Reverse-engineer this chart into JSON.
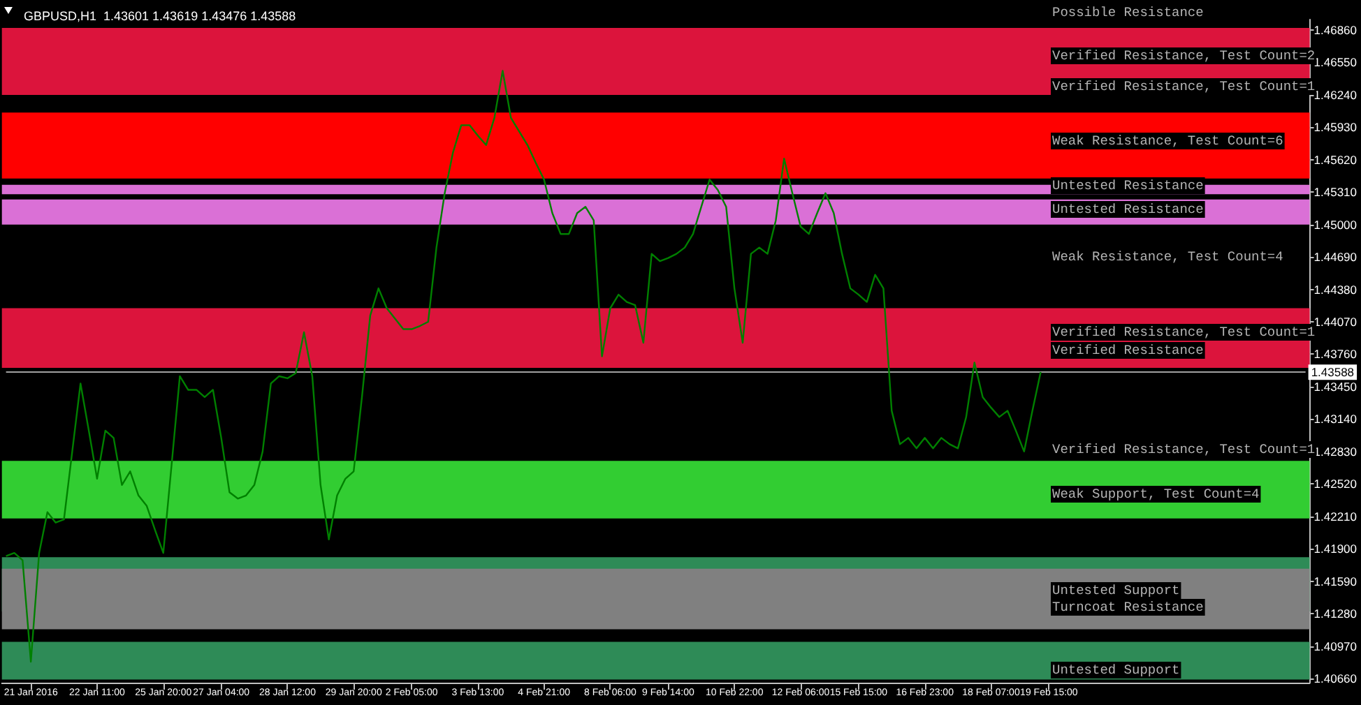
{
  "chart_data": {
    "type": "line",
    "title": "GBPUSD,H1  1.43601 1.43619 1.43476 1.43588",
    "categories": [
      null,
      null,
      null,
      "21 Jan 2016",
      null,
      null,
      null,
      null,
      null,
      null,
      null,
      "22 Jan 11:00",
      null,
      null,
      null,
      null,
      null,
      null,
      null,
      "25 Jan 20:00",
      null,
      null,
      null,
      null,
      null,
      null,
      "27 Jan 04:00",
      null,
      null,
      null,
      null,
      null,
      null,
      null,
      "28 Jan 12:00",
      null,
      null,
      null,
      null,
      null,
      null,
      null,
      "29 Jan 20:00",
      null,
      null,
      null,
      null,
      null,
      null,
      "2 Feb 05:00",
      null,
      null,
      null,
      null,
      null,
      null,
      null,
      "3 Feb 13:00",
      null,
      null,
      null,
      null,
      null,
      null,
      null,
      "4 Feb 21:00",
      null,
      null,
      null,
      null,
      null,
      null,
      null,
      "8 Feb 06:00",
      null,
      null,
      null,
      null,
      null,
      null,
      "9 Feb 14:00",
      null,
      null,
      null,
      null,
      null,
      null,
      null,
      "10 Feb 22:00",
      null,
      null,
      null,
      null,
      null,
      null,
      null,
      "12 Feb 06:00",
      null,
      null,
      null,
      null,
      null,
      null,
      "15 Feb 15:00",
      null,
      null,
      null,
      null,
      null,
      null,
      null,
      "16 Feb 23:00",
      null,
      null,
      null,
      null,
      null,
      null,
      null,
      "18 Feb 07:00",
      null,
      null,
      null,
      null,
      null,
      null,
      "19 Feb 15:00",
      null,
      null,
      null,
      null,
      null,
      null,
      null,
      null,
      null,
      null,
      null,
      null,
      null,
      null,
      null,
      null,
      null,
      null,
      null,
      null,
      null,
      null,
      null,
      null,
      null,
      null,
      null,
      null,
      null,
      null,
      null
    ],
    "values": [
      1.4183,
      1.4186,
      1.4179,
      1.4082,
      1.4186,
      1.4225,
      1.4215,
      1.4218,
      1.4283,
      1.4348,
      1.4303,
      1.4257,
      1.4303,
      1.4296,
      1.4251,
      1.4264,
      1.4241,
      1.4231,
      1.4208,
      1.4186,
      1.427,
      1.4355,
      1.4342,
      1.4342,
      1.4335,
      1.4342,
      1.4296,
      1.4244,
      1.4238,
      1.4241,
      1.4251,
      1.4283,
      1.4348,
      1.4355,
      1.4353,
      1.4358,
      1.4397,
      1.4355,
      1.4251,
      1.4199,
      1.4241,
      1.4257,
      1.4264,
      1.4335,
      1.4413,
      1.4439,
      1.442,
      1.441,
      1.44,
      1.44,
      1.4403,
      1.4407,
      1.4478,
      1.453,
      1.4569,
      1.4595,
      1.4595,
      1.4585,
      1.4576,
      1.4602,
      1.4647,
      1.4602,
      1.4589,
      1.4576,
      1.4559,
      1.4543,
      1.4511,
      1.4491,
      1.4491,
      1.4511,
      1.4517,
      1.4504,
      1.4374,
      1.442,
      1.4433,
      1.4426,
      1.4423,
      1.4387,
      1.4472,
      1.4465,
      1.4468,
      1.4472,
      1.4478,
      1.4491,
      1.4517,
      1.4543,
      1.4533,
      1.4517,
      1.4439,
      1.4387,
      1.4472,
      1.4478,
      1.4472,
      1.4504,
      1.4563,
      1.453,
      1.4498,
      1.4491,
      1.4511,
      1.453,
      1.4511,
      1.4472,
      1.4439,
      1.4433,
      1.4426,
      1.4452,
      1.4439,
      1.4322,
      1.429,
      1.4296,
      1.4286,
      1.4296,
      1.4286,
      1.4296,
      1.429,
      1.4286,
      1.4316,
      1.4368,
      1.4335,
      1.4325,
      1.4316,
      1.4322,
      1.4303,
      1.4283,
      1.4322,
      1.4359,
      null,
      null,
      null,
      null,
      null,
      null,
      null,
      null,
      null,
      null,
      null,
      null,
      null,
      null,
      null,
      null,
      null,
      null,
      null,
      null,
      null,
      null,
      null,
      null,
      null,
      null,
      null,
      null,
      null,
      null,
      null,
      null
    ],
    "color": "#008000",
    "marker": "none",
    "ylim": [
      1.4062,
      1.4696
    ],
    "yticks": [
      {
        "value": 1.4066,
        "label": "1.40660"
      },
      {
        "value": 1.4097,
        "label": "1.40970"
      },
      {
        "value": 1.4128,
        "label": "1.41280"
      },
      {
        "value": 1.4159,
        "label": "1.41590"
      },
      {
        "value": 1.419,
        "label": "1.41900"
      },
      {
        "value": 1.4221,
        "label": "1.42210"
      },
      {
        "value": 1.4252,
        "label": "1.42520"
      },
      {
        "value": 1.4283,
        "label": "1.42830"
      },
      {
        "value": 1.4314,
        "label": "1.43140"
      },
      {
        "value": 1.4345,
        "label": "1.43450"
      },
      {
        "value": 1.4376,
        "label": "1.43760"
      },
      {
        "value": 1.4407,
        "label": "1.44070"
      },
      {
        "value": 1.4438,
        "label": "1.44380"
      },
      {
        "value": 1.4469,
        "label": "1.44690"
      },
      {
        "value": 1.45,
        "label": "1.45000"
      },
      {
        "value": 1.4531,
        "label": "1.45310"
      },
      {
        "value": 1.4562,
        "label": "1.45620"
      },
      {
        "value": 1.4593,
        "label": "1.45930"
      },
      {
        "value": 1.4624,
        "label": "1.46240"
      },
      {
        "value": 1.4655,
        "label": "1.46550"
      },
      {
        "value": 1.4686,
        "label": "1.46860"
      }
    ],
    "bands": [
      {
        "axis": "y",
        "from": 1.4624,
        "to": 1.4688,
        "color": "#dc143c"
      },
      {
        "axis": "y",
        "from": 1.4544,
        "to": 1.4607,
        "color": "#ff0000"
      },
      {
        "axis": "y",
        "from": 1.4529,
        "to": 1.4538,
        "color": "#da70d6"
      },
      {
        "axis": "y",
        "from": 1.45,
        "to": 1.4524,
        "color": "#da70d6"
      },
      {
        "axis": "y",
        "from": 1.4363,
        "to": 1.442,
        "color": "#dc143c"
      },
      {
        "axis": "y",
        "from": 1.4219,
        "to": 1.4274,
        "color": "#32cd32"
      },
      {
        "axis": "y",
        "from": 1.413,
        "to": 1.4182,
        "color": "#2e8b57"
      },
      {
        "axis": "y",
        "from": 1.4113,
        "to": 1.4171,
        "color": "#808080"
      },
      {
        "axis": "y",
        "from": 1.4065,
        "to": 1.4101,
        "color": "#2e8b57"
      }
    ],
    "ref_lines": [
      {
        "axis": "y",
        "value": 1.43588,
        "label": "1.43588",
        "color": "#a0a0a0"
      }
    ],
    "annotations": [
      "Possible Resistance",
      "Verified Resistance, Test Count=2",
      "Verified Resistance, Test Count=1",
      "Weak Resistance, Test Count=6",
      "Untested Resistance",
      "Untested Resistance",
      "Weak Resistance, Test Count=4",
      "Verified Resistance, Test Count=1",
      "Verified Resistance",
      "Verified Resistance, Test Count=1",
      "Weak Support, Test Count=4",
      "Untested Support",
      "Turncoat Resistance",
      "Untested Support"
    ]
  }
}
